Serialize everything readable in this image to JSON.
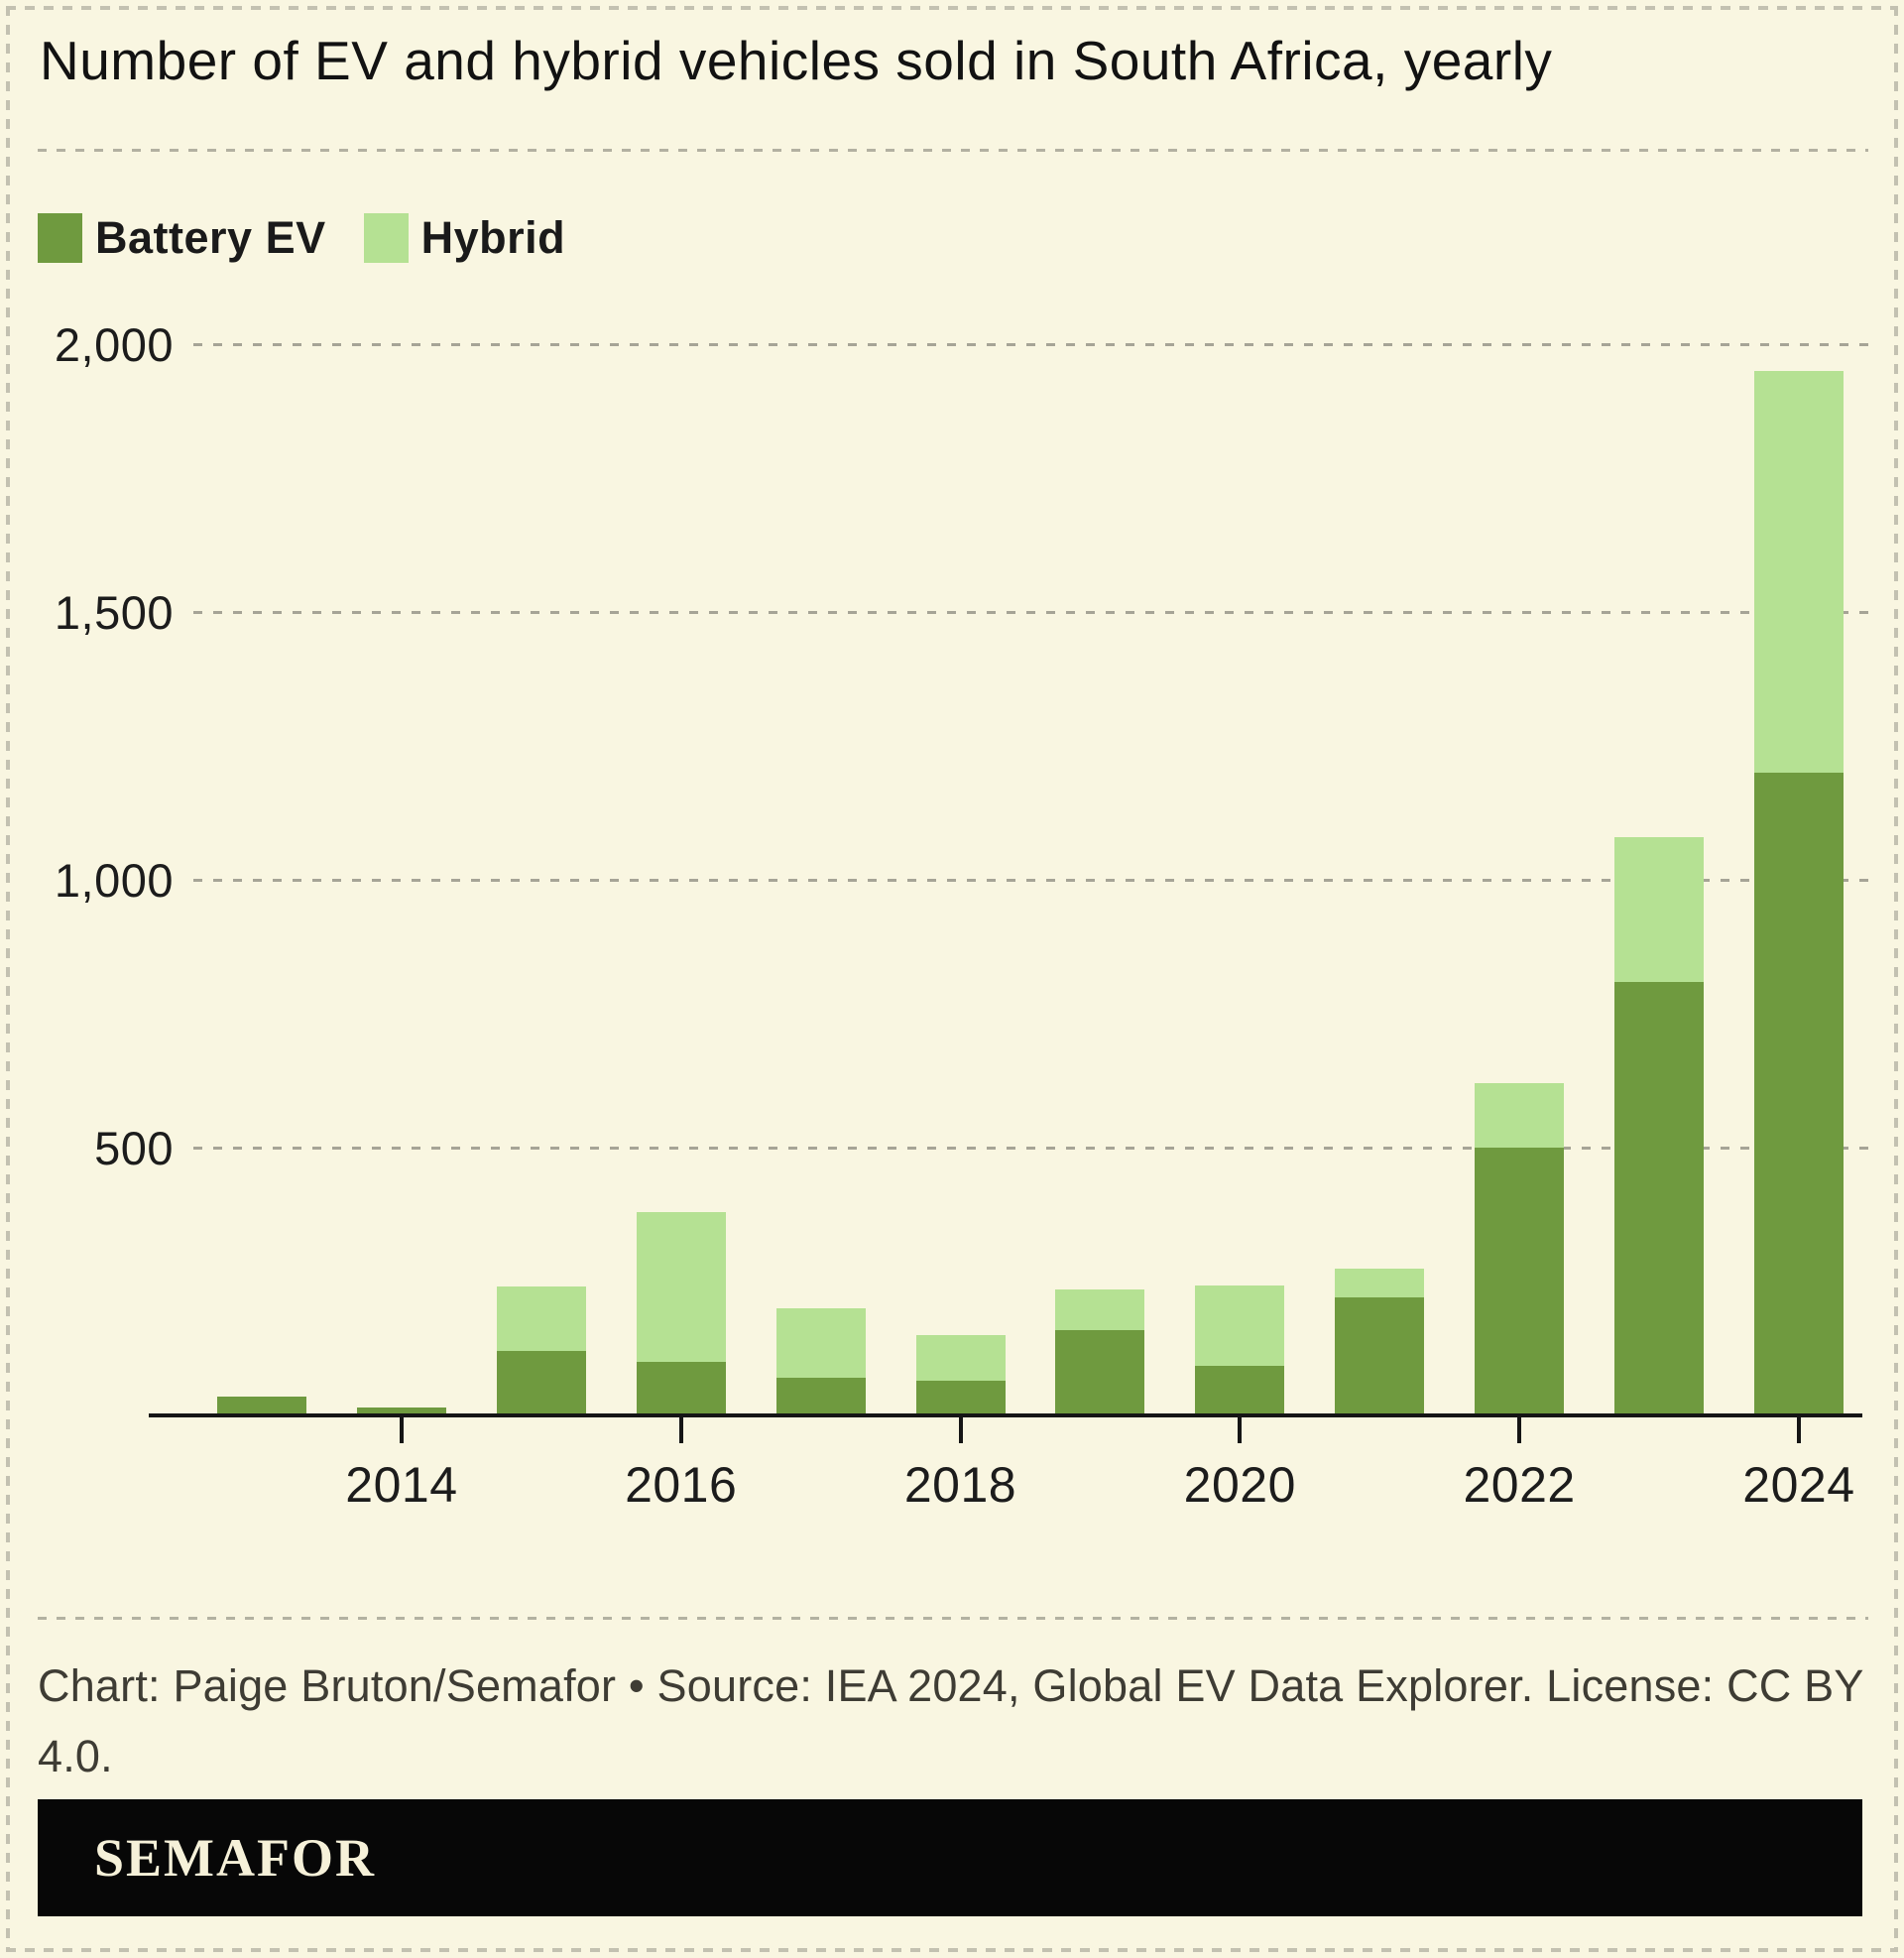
{
  "title": "Number of EV and hybrid vehicles sold in South Africa, yearly",
  "legend": [
    {
      "label": "Battery EV",
      "color": "#6f9a3f"
    },
    {
      "label": "Hybrid",
      "color": "#b5e193"
    }
  ],
  "footer": "Chart: Paige Bruton/Semafor • Source: IEA 2024, Global EV Data Explorer. License: CC BY 4.0.",
  "brand": "SEMAFOR",
  "colors": {
    "background": "#f9f6e1",
    "battery_ev": "#6f9a3f",
    "hybrid": "#b5e193",
    "axis": "#151515",
    "banner": "#070707"
  },
  "chart_data": {
    "type": "bar",
    "stacked": true,
    "title": "Number of EV and hybrid vehicles sold in South Africa, yearly",
    "xlabel": "",
    "ylabel": "",
    "categories": [
      2013,
      2014,
      2015,
      2016,
      2017,
      2018,
      2019,
      2020,
      2021,
      2022,
      2023,
      2024
    ],
    "series": [
      {
        "name": "Battery EV",
        "color": "#6f9a3f",
        "values": [
          35,
          15,
          120,
          100,
          70,
          65,
          160,
          92,
          220,
          500,
          810,
          1200
        ]
      },
      {
        "name": "Hybrid",
        "color": "#b5e193",
        "values": [
          0,
          0,
          120,
          280,
          130,
          85,
          75,
          150,
          55,
          120,
          270,
          750
        ]
      }
    ],
    "ylim": [
      0,
      2000
    ],
    "yticks": [
      500,
      1000,
      1500,
      2000
    ],
    "ytick_labels": [
      "500",
      "1,000",
      "1,500",
      "2,000"
    ],
    "xtick_labels": [
      "2014",
      "2016",
      "2018",
      "2020",
      "2022",
      "2024"
    ],
    "grid": "horizontal-dashed",
    "legend_position": "top-left"
  }
}
